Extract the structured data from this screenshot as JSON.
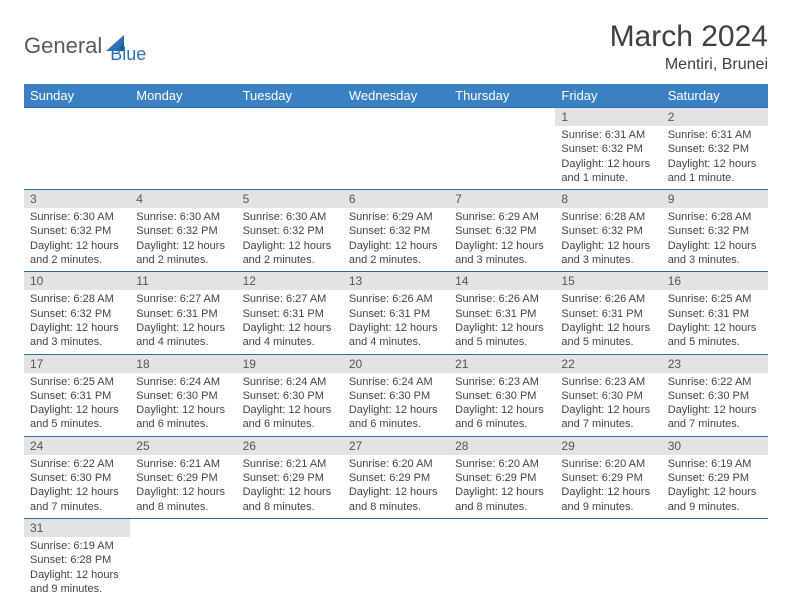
{
  "logo": {
    "general": "General",
    "blue": "Blue"
  },
  "header": {
    "title": "March 2024",
    "location": "Mentiri, Brunei"
  },
  "colors": {
    "header_bg": "#3a81c4",
    "header_fg": "#ffffff",
    "daynum_bg": "#e3e3e3",
    "row_border": "#2a6db0",
    "text": "#404040",
    "logo_blue": "#2a71b8",
    "logo_gray": "#5a5a5a"
  },
  "calendar": {
    "day_names": [
      "Sunday",
      "Monday",
      "Tuesday",
      "Wednesday",
      "Thursday",
      "Friday",
      "Saturday"
    ],
    "first_weekday_index": 5,
    "days": [
      {
        "n": 1,
        "sunrise": "6:31 AM",
        "sunset": "6:32 PM",
        "daylight": "12 hours and 1 minute."
      },
      {
        "n": 2,
        "sunrise": "6:31 AM",
        "sunset": "6:32 PM",
        "daylight": "12 hours and 1 minute."
      },
      {
        "n": 3,
        "sunrise": "6:30 AM",
        "sunset": "6:32 PM",
        "daylight": "12 hours and 2 minutes."
      },
      {
        "n": 4,
        "sunrise": "6:30 AM",
        "sunset": "6:32 PM",
        "daylight": "12 hours and 2 minutes."
      },
      {
        "n": 5,
        "sunrise": "6:30 AM",
        "sunset": "6:32 PM",
        "daylight": "12 hours and 2 minutes."
      },
      {
        "n": 6,
        "sunrise": "6:29 AM",
        "sunset": "6:32 PM",
        "daylight": "12 hours and 2 minutes."
      },
      {
        "n": 7,
        "sunrise": "6:29 AM",
        "sunset": "6:32 PM",
        "daylight": "12 hours and 3 minutes."
      },
      {
        "n": 8,
        "sunrise": "6:28 AM",
        "sunset": "6:32 PM",
        "daylight": "12 hours and 3 minutes."
      },
      {
        "n": 9,
        "sunrise": "6:28 AM",
        "sunset": "6:32 PM",
        "daylight": "12 hours and 3 minutes."
      },
      {
        "n": 10,
        "sunrise": "6:28 AM",
        "sunset": "6:32 PM",
        "daylight": "12 hours and 3 minutes."
      },
      {
        "n": 11,
        "sunrise": "6:27 AM",
        "sunset": "6:31 PM",
        "daylight": "12 hours and 4 minutes."
      },
      {
        "n": 12,
        "sunrise": "6:27 AM",
        "sunset": "6:31 PM",
        "daylight": "12 hours and 4 minutes."
      },
      {
        "n": 13,
        "sunrise": "6:26 AM",
        "sunset": "6:31 PM",
        "daylight": "12 hours and 4 minutes."
      },
      {
        "n": 14,
        "sunrise": "6:26 AM",
        "sunset": "6:31 PM",
        "daylight": "12 hours and 5 minutes."
      },
      {
        "n": 15,
        "sunrise": "6:26 AM",
        "sunset": "6:31 PM",
        "daylight": "12 hours and 5 minutes."
      },
      {
        "n": 16,
        "sunrise": "6:25 AM",
        "sunset": "6:31 PM",
        "daylight": "12 hours and 5 minutes."
      },
      {
        "n": 17,
        "sunrise": "6:25 AM",
        "sunset": "6:31 PM",
        "daylight": "12 hours and 5 minutes."
      },
      {
        "n": 18,
        "sunrise": "6:24 AM",
        "sunset": "6:30 PM",
        "daylight": "12 hours and 6 minutes."
      },
      {
        "n": 19,
        "sunrise": "6:24 AM",
        "sunset": "6:30 PM",
        "daylight": "12 hours and 6 minutes."
      },
      {
        "n": 20,
        "sunrise": "6:24 AM",
        "sunset": "6:30 PM",
        "daylight": "12 hours and 6 minutes."
      },
      {
        "n": 21,
        "sunrise": "6:23 AM",
        "sunset": "6:30 PM",
        "daylight": "12 hours and 6 minutes."
      },
      {
        "n": 22,
        "sunrise": "6:23 AM",
        "sunset": "6:30 PM",
        "daylight": "12 hours and 7 minutes."
      },
      {
        "n": 23,
        "sunrise": "6:22 AM",
        "sunset": "6:30 PM",
        "daylight": "12 hours and 7 minutes."
      },
      {
        "n": 24,
        "sunrise": "6:22 AM",
        "sunset": "6:30 PM",
        "daylight": "12 hours and 7 minutes."
      },
      {
        "n": 25,
        "sunrise": "6:21 AM",
        "sunset": "6:29 PM",
        "daylight": "12 hours and 8 minutes."
      },
      {
        "n": 26,
        "sunrise": "6:21 AM",
        "sunset": "6:29 PM",
        "daylight": "12 hours and 8 minutes."
      },
      {
        "n": 27,
        "sunrise": "6:20 AM",
        "sunset": "6:29 PM",
        "daylight": "12 hours and 8 minutes."
      },
      {
        "n": 28,
        "sunrise": "6:20 AM",
        "sunset": "6:29 PM",
        "daylight": "12 hours and 8 minutes."
      },
      {
        "n": 29,
        "sunrise": "6:20 AM",
        "sunset": "6:29 PM",
        "daylight": "12 hours and 9 minutes."
      },
      {
        "n": 30,
        "sunrise": "6:19 AM",
        "sunset": "6:29 PM",
        "daylight": "12 hours and 9 minutes."
      },
      {
        "n": 31,
        "sunrise": "6:19 AM",
        "sunset": "6:28 PM",
        "daylight": "12 hours and 9 minutes."
      }
    ]
  },
  "labels": {
    "sunrise": "Sunrise:",
    "sunset": "Sunset:",
    "daylight": "Daylight:"
  }
}
